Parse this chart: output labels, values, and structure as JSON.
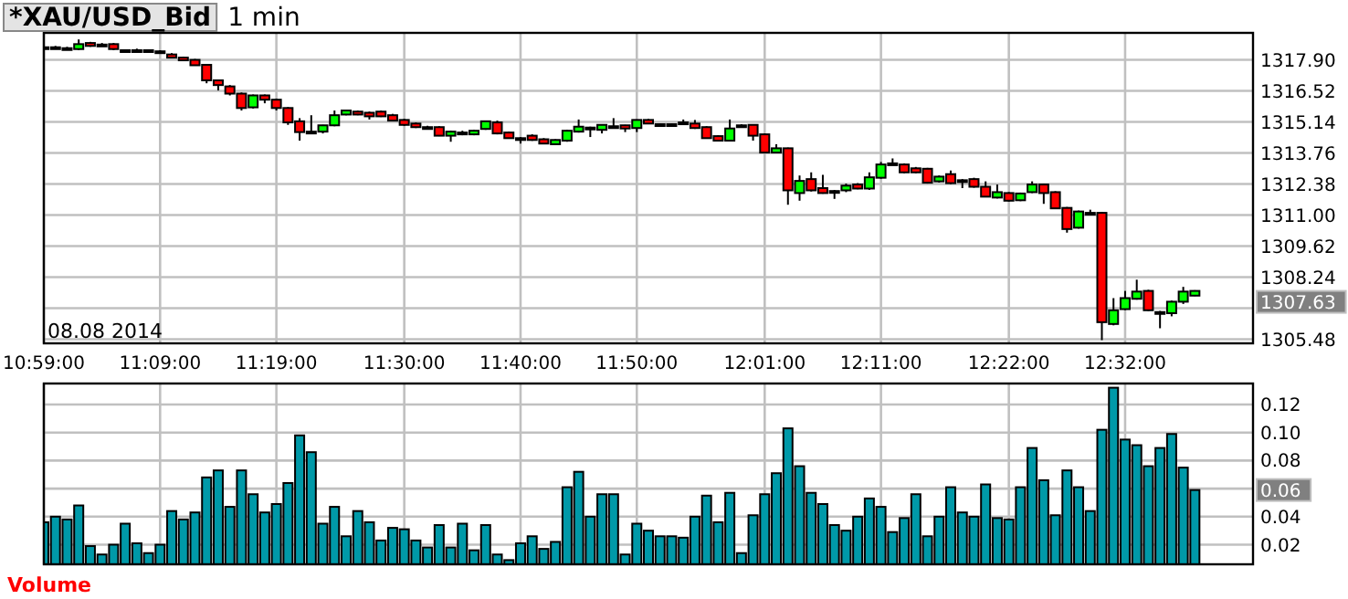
{
  "chart_data": [
    {
      "type": "candlestick",
      "title": "*XAU/USD_Bid",
      "subtitle": "1 min",
      "x": [
        "2014-08-08T10:59",
        "2014-08-08T11:00",
        "2014-08-08T11:01",
        "2014-08-08T11:02",
        "2014-08-08T11:03",
        "2014-08-08T11:04",
        "2014-08-08T11:05",
        "2014-08-08T11:06",
        "2014-08-08T11:07",
        "2014-08-08T11:08",
        "2014-08-08T11:09",
        "2014-08-08T11:10",
        "2014-08-08T11:11",
        "2014-08-08T11:12",
        "2014-08-08T11:13",
        "2014-08-08T11:14",
        "2014-08-08T11:15",
        "2014-08-08T11:16",
        "2014-08-08T11:17",
        "2014-08-08T11:18",
        "2014-08-08T11:19",
        "2014-08-08T11:20",
        "2014-08-08T11:21",
        "2014-08-08T11:22",
        "2014-08-08T11:23",
        "2014-08-08T11:24",
        "2014-08-08T11:25",
        "2014-08-08T11:26",
        "2014-08-08T11:27",
        "2014-08-08T11:28",
        "2014-08-08T11:29",
        "2014-08-08T11:30",
        "2014-08-08T11:31",
        "2014-08-08T11:32",
        "2014-08-08T11:33",
        "2014-08-08T11:34",
        "2014-08-08T11:35",
        "2014-08-08T11:36",
        "2014-08-08T11:37",
        "2014-08-08T11:38",
        "2014-08-08T11:39",
        "2014-08-08T11:40",
        "2014-08-08T11:41",
        "2014-08-08T11:42",
        "2014-08-08T11:43",
        "2014-08-08T11:44",
        "2014-08-08T11:45",
        "2014-08-08T11:46",
        "2014-08-08T11:47",
        "2014-08-08T11:48",
        "2014-08-08T11:49",
        "2014-08-08T11:50",
        "2014-08-08T11:51",
        "2014-08-08T11:52",
        "2014-08-08T11:53",
        "2014-08-08T11:54",
        "2014-08-08T11:55",
        "2014-08-08T11:56",
        "2014-08-08T11:57",
        "2014-08-08T11:58",
        "2014-08-08T11:59",
        "2014-08-08T12:00",
        "2014-08-08T12:01",
        "2014-08-08T12:02",
        "2014-08-08T12:03",
        "2014-08-08T12:04",
        "2014-08-08T12:05",
        "2014-08-08T12:06",
        "2014-08-08T12:07",
        "2014-08-08T12:08",
        "2014-08-08T12:09",
        "2014-08-08T12:10",
        "2014-08-08T12:11",
        "2014-08-08T12:12",
        "2014-08-08T12:13",
        "2014-08-08T12:14",
        "2014-08-08T12:15",
        "2014-08-08T12:16",
        "2014-08-08T12:17",
        "2014-08-08T12:18",
        "2014-08-08T12:19",
        "2014-08-08T12:20",
        "2014-08-08T12:21",
        "2014-08-08T12:22",
        "2014-08-08T12:23",
        "2014-08-08T12:24",
        "2014-08-08T12:25",
        "2014-08-08T12:26",
        "2014-08-08T12:27",
        "2014-08-08T12:28",
        "2014-08-08T12:29",
        "2014-08-08T12:30",
        "2014-08-08T12:31",
        "2014-08-08T12:32",
        "2014-08-08T12:33",
        "2014-08-08T12:34",
        "2014-08-08T12:35",
        "2014-08-08T12:36",
        "2014-08-08T12:37",
        "2014-08-08T12:38"
      ],
      "ohlc": [
        [
          1318.46,
          1318.52,
          1318.4,
          1318.46
        ],
        [
          1318.46,
          1318.52,
          1318.4,
          1318.46
        ],
        [
          1318.42,
          1318.48,
          1318.36,
          1318.42
        ],
        [
          1318.38,
          1318.81,
          1318.33,
          1318.6
        ],
        [
          1318.65,
          1318.7,
          1318.48,
          1318.52
        ],
        [
          1318.58,
          1318.65,
          1318.52,
          1318.58
        ],
        [
          1318.6,
          1318.65,
          1318.33,
          1318.38
        ],
        [
          1318.33,
          1318.36,
          1318.26,
          1318.31
        ],
        [
          1318.33,
          1318.4,
          1318.26,
          1318.33
        ],
        [
          1318.33,
          1318.36,
          1318.3,
          1318.33
        ],
        [
          1318.28,
          1318.33,
          1318.24,
          1318.28
        ],
        [
          1318.14,
          1318.2,
          1317.98,
          1318.0
        ],
        [
          1318.0,
          1318.04,
          1317.86,
          1317.88
        ],
        [
          1317.9,
          1317.94,
          1317.66,
          1317.66
        ],
        [
          1317.68,
          1317.72,
          1316.86,
          1316.99
        ],
        [
          1316.99,
          1317.02,
          1316.54,
          1316.78
        ],
        [
          1316.72,
          1316.78,
          1316.32,
          1316.4
        ],
        [
          1316.4,
          1316.45,
          1315.65,
          1315.76
        ],
        [
          1315.79,
          1316.36,
          1315.74,
          1316.32
        ],
        [
          1316.32,
          1316.36,
          1315.97,
          1316.13
        ],
        [
          1316.13,
          1316.18,
          1315.65,
          1315.76
        ],
        [
          1315.76,
          1315.8,
          1315.01,
          1315.12
        ],
        [
          1315.17,
          1315.31,
          1314.31,
          1314.69
        ],
        [
          1314.71,
          1315.44,
          1314.66,
          1314.71
        ],
        [
          1314.71,
          1315.01,
          1314.63,
          1314.99
        ],
        [
          1314.99,
          1315.65,
          1314.95,
          1315.44
        ],
        [
          1315.47,
          1315.68,
          1315.44,
          1315.65
        ],
        [
          1315.6,
          1315.65,
          1315.44,
          1315.47
        ],
        [
          1315.55,
          1315.6,
          1315.25,
          1315.39
        ],
        [
          1315.6,
          1315.65,
          1315.36,
          1315.39
        ],
        [
          1315.44,
          1315.5,
          1315.17,
          1315.2
        ],
        [
          1315.23,
          1315.28,
          1314.97,
          1315.01
        ],
        [
          1315.07,
          1315.12,
          1314.87,
          1314.91
        ],
        [
          1314.91,
          1314.97,
          1314.85,
          1314.91
        ],
        [
          1314.91,
          1314.95,
          1314.51,
          1314.53
        ],
        [
          1314.53,
          1314.75,
          1314.26,
          1314.71
        ],
        [
          1314.67,
          1314.75,
          1314.55,
          1314.63
        ],
        [
          1314.59,
          1314.79,
          1314.55,
          1314.75
        ],
        [
          1314.83,
          1315.2,
          1314.79,
          1315.17
        ],
        [
          1315.12,
          1315.2,
          1314.59,
          1314.63
        ],
        [
          1314.67,
          1314.71,
          1314.4,
          1314.42
        ],
        [
          1314.42,
          1314.47,
          1314.18,
          1314.42
        ],
        [
          1314.53,
          1314.59,
          1314.3,
          1314.34
        ],
        [
          1314.37,
          1314.42,
          1314.15,
          1314.18
        ],
        [
          1314.15,
          1314.37,
          1314.12,
          1314.34
        ],
        [
          1314.31,
          1314.79,
          1314.26,
          1314.75
        ],
        [
          1314.71,
          1315.25,
          1314.67,
          1314.93
        ],
        [
          1314.89,
          1314.93,
          1314.47,
          1314.87
        ],
        [
          1314.79,
          1315.04,
          1314.63,
          1315.01
        ],
        [
          1314.95,
          1315.31,
          1314.91,
          1314.95
        ],
        [
          1314.99,
          1315.01,
          1314.69,
          1314.85
        ],
        [
          1314.87,
          1315.25,
          1314.69,
          1315.23
        ],
        [
          1315.23,
          1315.28,
          1315.04,
          1315.07
        ],
        [
          1315.04,
          1315.07,
          1315.01,
          1315.04
        ],
        [
          1315.04,
          1315.07,
          1315.01,
          1315.04
        ],
        [
          1315.12,
          1315.25,
          1315.07,
          1315.12
        ],
        [
          1315.07,
          1315.23,
          1314.83,
          1314.87
        ],
        [
          1314.91,
          1314.95,
          1314.4,
          1314.42
        ],
        [
          1314.51,
          1314.55,
          1314.28,
          1314.31
        ],
        [
          1314.31,
          1315.25,
          1314.28,
          1314.85
        ],
        [
          1314.99,
          1315.04,
          1314.93,
          1314.99
        ],
        [
          1315.01,
          1315.04,
          1314.31,
          1314.53
        ],
        [
          1314.59,
          1314.63,
          1313.75,
          1313.78
        ],
        [
          1313.78,
          1314.15,
          1313.75,
          1313.97
        ],
        [
          1313.97,
          1314.0,
          1311.46,
          1312.1
        ],
        [
          1311.98,
          1312.76,
          1311.64,
          1312.52
        ],
        [
          1312.6,
          1312.9,
          1312.05,
          1312.1
        ],
        [
          1312.2,
          1312.79,
          1311.95,
          1311.98
        ],
        [
          1312.07,
          1312.12,
          1311.72,
          1312.05
        ],
        [
          1312.1,
          1312.4,
          1312.02,
          1312.31
        ],
        [
          1312.36,
          1312.42,
          1312.15,
          1312.18
        ],
        [
          1312.18,
          1312.9,
          1312.12,
          1312.68
        ],
        [
          1312.66,
          1313.36,
          1312.62,
          1313.25
        ],
        [
          1313.3,
          1313.52,
          1313.25,
          1313.3
        ],
        [
          1313.25,
          1313.3,
          1312.86,
          1312.9
        ],
        [
          1313.08,
          1313.14,
          1312.86,
          1312.9
        ],
        [
          1313.06,
          1313.1,
          1312.4,
          1312.44
        ],
        [
          1312.5,
          1312.76,
          1312.45,
          1312.71
        ],
        [
          1312.82,
          1312.98,
          1312.38,
          1312.42
        ],
        [
          1312.55,
          1312.6,
          1312.2,
          1312.55
        ],
        [
          1312.6,
          1312.66,
          1312.22,
          1312.26
        ],
        [
          1312.26,
          1312.5,
          1311.8,
          1311.82
        ],
        [
          1311.78,
          1312.36,
          1311.74,
          1312.02
        ],
        [
          1311.98,
          1312.02,
          1311.6,
          1311.64
        ],
        [
          1311.66,
          1312.0,
          1311.62,
          1311.96
        ],
        [
          1312.02,
          1312.5,
          1311.98,
          1312.36
        ],
        [
          1312.36,
          1312.4,
          1311.5,
          1311.98
        ],
        [
          1312.02,
          1312.06,
          1311.28,
          1311.3
        ],
        [
          1311.32,
          1311.36,
          1310.22,
          1310.38
        ],
        [
          1310.44,
          1311.2,
          1310.4,
          1311.16
        ],
        [
          1311.1,
          1311.24,
          1311.05,
          1311.1
        ],
        [
          1311.1,
          1311.14,
          1305.44,
          1306.24
        ],
        [
          1306.16,
          1307.31,
          1306.1,
          1306.77
        ],
        [
          1306.82,
          1307.63,
          1306.78,
          1307.31
        ],
        [
          1307.28,
          1308.13,
          1307.24,
          1307.6
        ],
        [
          1307.63,
          1307.68,
          1306.74,
          1306.77
        ],
        [
          1306.69,
          1306.74,
          1305.97,
          1306.69
        ],
        [
          1306.64,
          1307.2,
          1306.5,
          1307.15
        ],
        [
          1307.15,
          1307.81,
          1307.05,
          1307.6
        ],
        [
          1307.42,
          1307.66,
          1307.4,
          1307.63
        ]
      ],
      "colors": [
        "#000000",
        "#000000",
        "#000000",
        "#00ff00",
        "#ff0000",
        "#000000",
        "#ff0000",
        "#ff0000",
        "#000000",
        "#000000",
        "#000000",
        "#ff0000",
        "#ff0000",
        "#ff0000",
        "#ff0000",
        "#ff0000",
        "#ff0000",
        "#ff0000",
        "#00ff00",
        "#ff0000",
        "#ff0000",
        "#ff0000",
        "#ff0000",
        "#000000",
        "#00ff00",
        "#00ff00",
        "#00ff00",
        "#ff0000",
        "#ff0000",
        "#ff0000",
        "#ff0000",
        "#ff0000",
        "#ff0000",
        "#000000",
        "#ff0000",
        "#00ff00",
        "#ff0000",
        "#00ff00",
        "#00ff00",
        "#ff0000",
        "#ff0000",
        "#000000",
        "#ff0000",
        "#ff0000",
        "#00ff00",
        "#00ff00",
        "#00ff00",
        "#ff0000",
        "#00ff00",
        "#000000",
        "#ff0000",
        "#00ff00",
        "#ff0000",
        "#000000",
        "#000000",
        "#000000",
        "#ff0000",
        "#ff0000",
        "#ff0000",
        "#00ff00",
        "#000000",
        "#ff0000",
        "#ff0000",
        "#00ff00",
        "#ff0000",
        "#00ff00",
        "#ff0000",
        "#ff0000",
        "#ff0000",
        "#00ff00",
        "#ff0000",
        "#00ff00",
        "#00ff00",
        "#000000",
        "#ff0000",
        "#ff0000",
        "#ff0000",
        "#00ff00",
        "#ff0000",
        "#000000",
        "#ff0000",
        "#ff0000",
        "#00ff00",
        "#ff0000",
        "#00ff00",
        "#00ff00",
        "#ff0000",
        "#ff0000",
        "#ff0000",
        "#00ff00",
        "#000000",
        "#ff0000",
        "#00ff00",
        "#00ff00",
        "#00ff00",
        "#ff0000",
        "#000000",
        "#00ff00",
        "#00ff00",
        "#00ff00"
      ],
      "xlim": [
        "2014-08-08T10:59",
        "2014-08-08T12:43"
      ],
      "xticks": [
        {
          "value": "2014-08-08T10:59",
          "label": "10:59:00"
        },
        {
          "value": "2014-08-08T11:09",
          "label": "11:09:00"
        },
        {
          "value": "2014-08-08T11:19",
          "label": "11:19:00"
        },
        {
          "value": "2014-08-08T11:30",
          "label": "11:30:00"
        },
        {
          "value": "2014-08-08T11:40",
          "label": "11:40:00"
        },
        {
          "value": "2014-08-08T11:50",
          "label": "11:50:00"
        },
        {
          "value": "2014-08-08T12:01",
          "label": "12:01:00"
        },
        {
          "value": "2014-08-08T12:11",
          "label": "12:11:00"
        },
        {
          "value": "2014-08-08T12:22",
          "label": "12:22:00"
        },
        {
          "value": "2014-08-08T12:32",
          "label": "12:32:00"
        }
      ],
      "ylim": [
        1305.3,
        1319.1
      ],
      "yticks": [
        1305.48,
        {
          "value": 1306.86,
          "label": null
        },
        1308.24,
        1309.62,
        {
          "value": 1311.0,
          "label": "1311.00"
        },
        1312.38,
        1313.76,
        1315.14,
        1316.52,
        {
          "value": 1317.9,
          "label": "1317.90"
        }
      ],
      "grid": true,
      "annotations": [
        "08.08 2014",
        "1307.63"
      ]
    },
    {
      "type": "bar",
      "title": "Volume",
      "x": [
        "2014-08-08T10:59",
        "2014-08-08T11:00",
        "2014-08-08T11:01",
        "2014-08-08T11:02",
        "2014-08-08T11:03",
        "2014-08-08T11:04",
        "2014-08-08T11:05",
        "2014-08-08T11:06",
        "2014-08-08T11:07",
        "2014-08-08T11:08",
        "2014-08-08T11:09",
        "2014-08-08T11:10",
        "2014-08-08T11:11",
        "2014-08-08T11:12",
        "2014-08-08T11:13",
        "2014-08-08T11:14",
        "2014-08-08T11:15",
        "2014-08-08T11:16",
        "2014-08-08T11:17",
        "2014-08-08T11:18",
        "2014-08-08T11:19",
        "2014-08-08T11:20",
        "2014-08-08T11:21",
        "2014-08-08T11:22",
        "2014-08-08T11:23",
        "2014-08-08T11:24",
        "2014-08-08T11:25",
        "2014-08-08T11:26",
        "2014-08-08T11:27",
        "2014-08-08T11:28",
        "2014-08-08T11:29",
        "2014-08-08T11:30",
        "2014-08-08T11:31",
        "2014-08-08T11:32",
        "2014-08-08T11:33",
        "2014-08-08T11:34",
        "2014-08-08T11:35",
        "2014-08-08T11:36",
        "2014-08-08T11:37",
        "2014-08-08T11:38",
        "2014-08-08T11:39",
        "2014-08-08T11:40",
        "2014-08-08T11:41",
        "2014-08-08T11:42",
        "2014-08-08T11:43",
        "2014-08-08T11:44",
        "2014-08-08T11:45",
        "2014-08-08T11:46",
        "2014-08-08T11:47",
        "2014-08-08T11:48",
        "2014-08-08T11:49",
        "2014-08-08T11:50",
        "2014-08-08T11:51",
        "2014-08-08T11:52",
        "2014-08-08T11:53",
        "2014-08-08T11:54",
        "2014-08-08T11:55",
        "2014-08-08T11:56",
        "2014-08-08T11:57",
        "2014-08-08T11:58",
        "2014-08-08T11:59",
        "2014-08-08T12:00",
        "2014-08-08T12:01",
        "2014-08-08T12:02",
        "2014-08-08T12:03",
        "2014-08-08T12:04",
        "2014-08-08T12:05",
        "2014-08-08T12:06",
        "2014-08-08T12:07",
        "2014-08-08T12:08",
        "2014-08-08T12:09",
        "2014-08-08T12:10",
        "2014-08-08T12:11",
        "2014-08-08T12:12",
        "2014-08-08T12:13",
        "2014-08-08T12:14",
        "2014-08-08T12:15",
        "2014-08-08T12:16",
        "2014-08-08T12:17",
        "2014-08-08T12:18",
        "2014-08-08T12:19",
        "2014-08-08T12:20",
        "2014-08-08T12:21",
        "2014-08-08T12:22",
        "2014-08-08T12:23",
        "2014-08-08T12:24",
        "2014-08-08T12:25",
        "2014-08-08T12:26",
        "2014-08-08T12:27",
        "2014-08-08T12:28",
        "2014-08-08T12:29",
        "2014-08-08T12:30",
        "2014-08-08T12:31",
        "2014-08-08T12:32",
        "2014-08-08T12:33",
        "2014-08-08T12:34",
        "2014-08-08T12:35",
        "2014-08-08T12:36",
        "2014-08-08T12:37",
        "2014-08-08T12:38"
      ],
      "values": [
        0.036,
        0.04,
        0.038,
        0.048,
        0.019,
        0.013,
        0.02,
        0.035,
        0.021,
        0.014,
        0.02,
        0.044,
        0.038,
        0.043,
        0.068,
        0.073,
        0.047,
        0.073,
        0.056,
        0.043,
        0.049,
        0.064,
        0.098,
        0.086,
        0.035,
        0.047,
        0.026,
        0.044,
        0.036,
        0.023,
        0.032,
        0.031,
        0.023,
        0.018,
        0.034,
        0.018,
        0.035,
        0.016,
        0.034,
        0.013,
        0.009,
        0.021,
        0.026,
        0.017,
        0.022,
        0.061,
        0.072,
        0.04,
        0.056,
        0.056,
        0.013,
        0.035,
        0.03,
        0.026,
        0.026,
        0.025,
        0.04,
        0.055,
        0.036,
        0.057,
        0.014,
        0.041,
        0.056,
        0.071,
        0.103,
        0.076,
        0.057,
        0.049,
        0.034,
        0.03,
        0.04,
        0.053,
        0.047,
        0.029,
        0.039,
        0.056,
        0.026,
        0.04,
        0.061,
        0.043,
        0.04,
        0.063,
        0.039,
        0.038,
        0.061,
        0.089,
        0.066,
        0.041,
        0.073,
        0.061,
        0.044,
        0.102,
        0.132,
        0.095,
        0.091,
        0.076,
        0.089,
        0.099,
        0.075,
        0.059
      ],
      "color": "#0099a8",
      "xlim": [
        "2014-08-08T10:59",
        "2014-08-08T12:43"
      ],
      "xticks": [
        "2014-08-08T10:59",
        "2014-08-08T11:09",
        "2014-08-08T11:19",
        "2014-08-08T11:30",
        "2014-08-08T11:40",
        "2014-08-08T11:50",
        "2014-08-08T12:01",
        "2014-08-08T12:11",
        "2014-08-08T12:22",
        "2014-08-08T12:32"
      ],
      "ylim": [
        0.006,
        0.135
      ],
      "yticks": [
        0.02,
        0.04,
        {
          "value": 0.06,
          "label": null
        },
        0.08,
        {
          "value": 0.1,
          "label": "0.10"
        },
        0.12
      ],
      "grid": true,
      "tick_labels": "y",
      "annotations": [
        "0.06"
      ]
    }
  ]
}
